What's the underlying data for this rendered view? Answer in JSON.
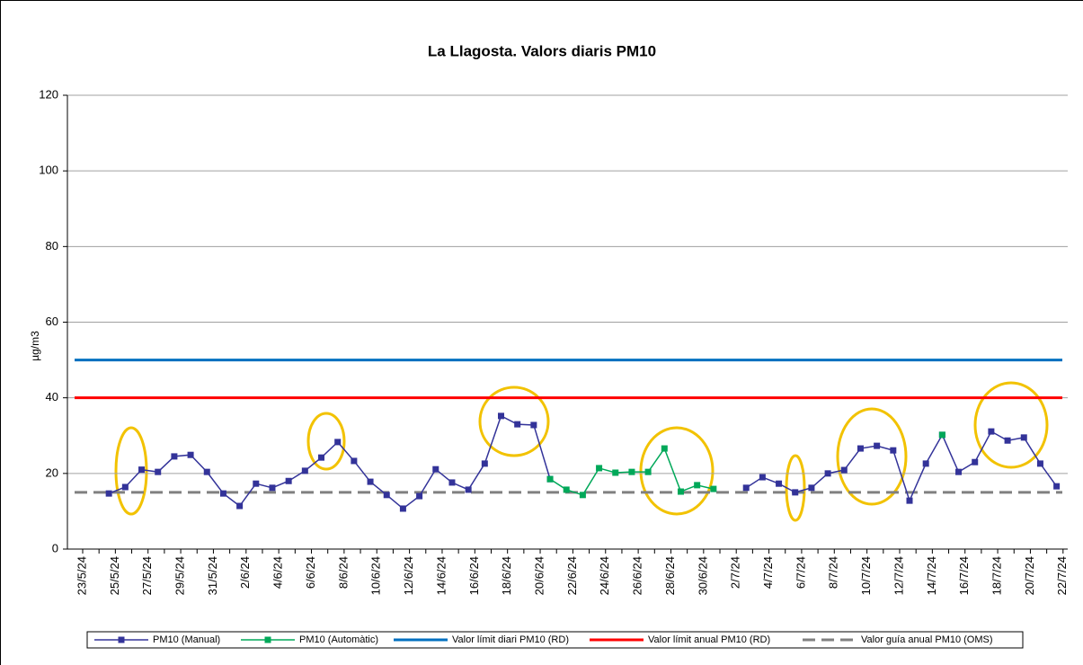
{
  "chart_data": {
    "type": "line",
    "title": "La Llagosta. Valors diaris PM10",
    "y_label": "µg/m3",
    "categories": [
      "23/5/24",
      null,
      "25/5/24",
      null,
      "27/5/24",
      null,
      "29/5/24",
      null,
      "31/5/24",
      null,
      "2/6/24",
      null,
      "4/6/24",
      null,
      "6/6/24",
      null,
      "8/6/24",
      null,
      "10/6/24",
      null,
      "12/6/24",
      null,
      "14/6/24",
      null,
      "16/6/24",
      null,
      "18/6/24",
      null,
      "20/6/24",
      null,
      "22/6/24",
      null,
      "24/6/24",
      null,
      "26/6/24",
      null,
      "28/6/24",
      null,
      "30/6/24",
      null,
      "2/7/24",
      null,
      "4/7/24",
      null,
      "6/7/24",
      null,
      "8/7/24",
      null,
      "10/7/24",
      null,
      "12/7/24",
      null,
      "14/7/24",
      null,
      "16/7/24",
      null,
      "18/7/24",
      null,
      "20/7/24",
      null,
      "22/7/24"
    ],
    "series": [
      {
        "name": "PM10 (Manual)",
        "color": "#333399",
        "values": [
          null,
          14.7,
          16.4,
          21,
          20.4,
          24.5,
          24.9,
          20.4,
          14.7,
          11.4,
          17.3,
          16.2,
          18,
          20.7,
          24.2,
          28.3,
          23.3,
          17.8,
          14.3,
          10.7,
          14,
          21.1,
          17.6,
          15.7,
          22.6,
          35.2,
          33,
          32.8,
          18.5,
          null,
          null,
          null,
          null,
          null,
          null,
          null,
          null,
          null,
          null,
          null,
          16.2,
          19,
          17.3,
          15,
          16.2,
          20,
          20.9,
          26.6,
          27.3,
          26.1,
          12.8,
          22.6,
          30.2,
          20.4,
          23,
          31.1,
          28.7,
          29.5,
          22.6,
          16.6,
          null
        ]
      },
      {
        "name": "PM10 (Automàtic)",
        "color": "#00a859",
        "values": [
          null,
          null,
          null,
          null,
          null,
          null,
          null,
          null,
          null,
          null,
          null,
          null,
          null,
          null,
          null,
          null,
          null,
          null,
          null,
          null,
          null,
          null,
          null,
          null,
          null,
          null,
          null,
          null,
          18.5,
          15.7,
          14.3,
          21.4,
          20.2,
          20.4,
          20.4,
          26.6,
          15.2,
          16.9,
          15.9,
          null,
          null,
          null,
          null,
          null,
          null,
          null,
          null,
          null,
          null,
          null,
          null,
          null,
          30.2,
          null,
          null,
          null,
          null,
          null,
          null,
          null,
          null
        ]
      }
    ],
    "reference_lines": [
      {
        "name": "Valor límit diari PM10 (RD)",
        "value": 50,
        "color": "#0070c0",
        "dashed": false
      },
      {
        "name": "Valor límit anual PM10 (RD)",
        "value": 40,
        "color": "#ff0000",
        "dashed": false
      },
      {
        "name": "Valor guía anual PM10 (OMS)",
        "value": 15,
        "color": "#808080",
        "dashed": true
      }
    ],
    "ylim": [
      0,
      120
    ],
    "yticks": [
      0,
      20,
      40,
      60,
      80,
      100,
      120
    ],
    "grid": true,
    "legend": "bottom"
  }
}
